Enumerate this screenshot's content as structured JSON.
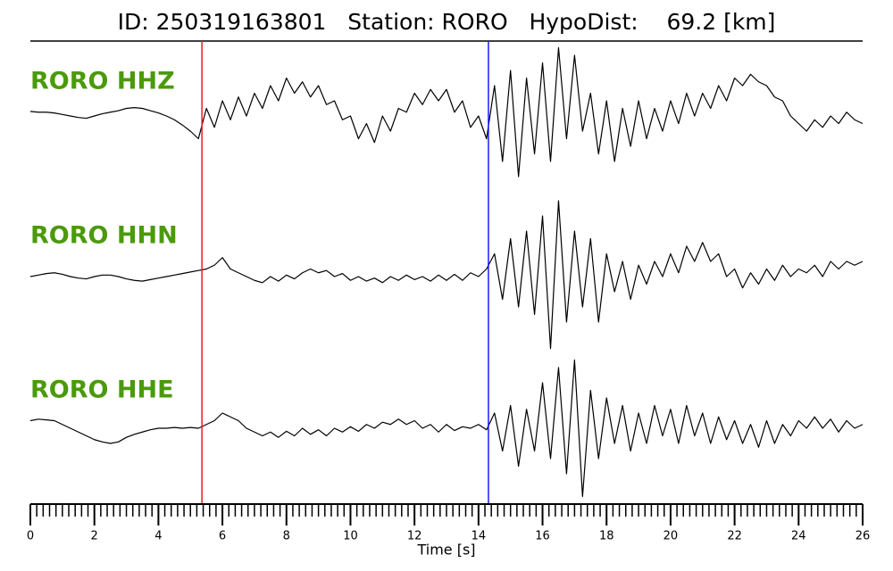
{
  "chart_data": {
    "type": "seismogram",
    "title": "ID: 250319163801   Station: RORO   HypoDist:    69.2 [km]",
    "xlabel": "Time [s]",
    "xlim": [
      0,
      26
    ],
    "xticks": [
      0,
      2,
      4,
      6,
      8,
      10,
      12,
      14,
      16,
      18,
      20,
      22,
      24,
      26
    ],
    "xminor_step": 0.2,
    "ylim": [
      -1,
      1
    ],
    "label_color": "#4a9a0a",
    "markers": [
      {
        "x": 5.36,
        "color": "#e8201c"
      },
      {
        "x": 14.31,
        "color": "#1a1aff"
      }
    ],
    "x": [
      0,
      0.25,
      0.5,
      0.75,
      1,
      1.25,
      1.5,
      1.75,
      2,
      2.25,
      2.5,
      2.75,
      3,
      3.25,
      3.5,
      3.75,
      4,
      4.25,
      4.5,
      4.75,
      5,
      5.25,
      5.5,
      5.75,
      6,
      6.25,
      6.5,
      6.75,
      7,
      7.25,
      7.5,
      7.75,
      8,
      8.25,
      8.5,
      8.75,
      9,
      9.25,
      9.5,
      9.75,
      10,
      10.25,
      10.5,
      10.75,
      11,
      11.25,
      11.5,
      11.75,
      12,
      12.25,
      12.5,
      12.75,
      13,
      13.25,
      13.5,
      13.75,
      14,
      14.25,
      14.5,
      14.75,
      15,
      15.25,
      15.5,
      15.75,
      16,
      16.25,
      16.5,
      16.75,
      17,
      17.25,
      17.5,
      17.75,
      18,
      18.25,
      18.5,
      18.75,
      19,
      19.25,
      19.5,
      19.75,
      20,
      20.25,
      20.5,
      20.75,
      21,
      21.25,
      21.5,
      21.75,
      22,
      22.25,
      22.5,
      22.75,
      23,
      23.25,
      23.5,
      23.75,
      24,
      24.25,
      24.5,
      24.75,
      25,
      25.25,
      25.5,
      25.75,
      26
    ],
    "series": [
      {
        "name": "RORO HHZ",
        "color": "#000000",
        "values": [
          0.06,
          0.05,
          0.05,
          0.04,
          0.02,
          0.0,
          -0.02,
          -0.03,
          0.0,
          0.03,
          0.05,
          0.07,
          0.1,
          0.11,
          0.1,
          0.07,
          0.04,
          0.0,
          -0.05,
          -0.12,
          -0.2,
          -0.3,
          0.1,
          -0.15,
          0.2,
          -0.05,
          0.25,
          0.0,
          0.3,
          0.1,
          0.4,
          0.2,
          0.5,
          0.3,
          0.45,
          0.25,
          0.4,
          0.15,
          0.2,
          -0.05,
          0.0,
          -0.3,
          -0.1,
          -0.35,
          0.0,
          -0.2,
          0.1,
          0.05,
          0.3,
          0.15,
          0.35,
          0.2,
          0.35,
          0.05,
          0.2,
          -0.15,
          0.0,
          -0.3,
          0.4,
          -0.6,
          0.6,
          -0.8,
          0.5,
          -0.5,
          0.7,
          -0.6,
          0.9,
          -0.3,
          0.8,
          -0.2,
          0.3,
          -0.5,
          0.2,
          -0.6,
          0.1,
          -0.4,
          0.2,
          -0.3,
          0.1,
          -0.2,
          0.2,
          -0.1,
          0.3,
          0.0,
          0.3,
          0.1,
          0.4,
          0.2,
          0.5,
          0.4,
          0.55,
          0.45,
          0.4,
          0.25,
          0.2,
          0.0,
          -0.1,
          -0.2,
          -0.05,
          -0.15,
          0.0,
          -0.1,
          0.05,
          -0.05,
          -0.1
        ]
      },
      {
        "name": "RORO HHN",
        "color": "#000000",
        "values": [
          0.0,
          0.02,
          0.04,
          0.05,
          0.03,
          0.0,
          -0.02,
          -0.03,
          0.0,
          0.02,
          0.02,
          0.0,
          -0.03,
          -0.05,
          -0.06,
          -0.04,
          -0.02,
          0.0,
          0.02,
          0.04,
          0.06,
          0.08,
          0.1,
          0.15,
          0.25,
          0.1,
          0.05,
          0.0,
          -0.05,
          -0.08,
          0.0,
          -0.06,
          0.02,
          -0.03,
          0.05,
          0.1,
          0.05,
          0.08,
          0.0,
          0.04,
          -0.05,
          0.0,
          -0.06,
          -0.02,
          -0.08,
          0.0,
          -0.05,
          0.02,
          -0.04,
          0.0,
          -0.06,
          0.02,
          -0.05,
          0.03,
          -0.05,
          0.05,
          0.0,
          0.1,
          0.3,
          -0.3,
          0.5,
          -0.4,
          0.6,
          -0.5,
          0.8,
          -0.95,
          1.0,
          -0.6,
          0.6,
          -0.4,
          0.5,
          -0.6,
          0.3,
          -0.2,
          0.2,
          -0.3,
          0.15,
          -0.1,
          0.2,
          0.0,
          0.3,
          0.05,
          0.4,
          0.2,
          0.45,
          0.2,
          0.3,
          0.0,
          0.1,
          -0.15,
          0.05,
          -0.1,
          0.1,
          -0.05,
          0.15,
          0.0,
          0.1,
          0.05,
          0.15,
          0.0,
          0.2,
          0.1,
          0.2,
          0.15,
          0.2
        ]
      },
      {
        "name": "RORO HHE",
        "color": "#000000",
        "values": [
          0.1,
          0.12,
          0.11,
          0.1,
          0.05,
          0.0,
          -0.05,
          -0.1,
          -0.15,
          -0.18,
          -0.2,
          -0.18,
          -0.12,
          -0.08,
          -0.05,
          -0.02,
          0.0,
          0.0,
          0.01,
          0.0,
          0.01,
          0.0,
          0.05,
          0.1,
          0.2,
          0.15,
          0.1,
          0.0,
          -0.05,
          -0.1,
          -0.05,
          -0.12,
          -0.04,
          -0.1,
          0.0,
          -0.08,
          -0.02,
          -0.1,
          0.0,
          -0.05,
          0.02,
          -0.04,
          0.05,
          0.0,
          0.08,
          0.05,
          0.12,
          0.05,
          0.1,
          0.0,
          0.05,
          -0.05,
          0.05,
          -0.03,
          0.02,
          0.0,
          0.05,
          -0.02,
          0.2,
          -0.3,
          0.3,
          -0.5,
          0.25,
          -0.3,
          0.6,
          -0.4,
          0.8,
          -0.6,
          0.9,
          -0.9,
          0.5,
          -0.4,
          0.4,
          -0.2,
          0.3,
          -0.3,
          0.2,
          -0.2,
          0.3,
          -0.1,
          0.25,
          -0.2,
          0.3,
          -0.1,
          0.2,
          -0.2,
          0.15,
          -0.15,
          0.1,
          -0.2,
          0.05,
          -0.25,
          0.1,
          -0.2,
          0.05,
          -0.1,
          0.1,
          0.0,
          0.15,
          0.0,
          0.12,
          -0.05,
          0.1,
          0.0,
          0.05
        ]
      }
    ]
  }
}
